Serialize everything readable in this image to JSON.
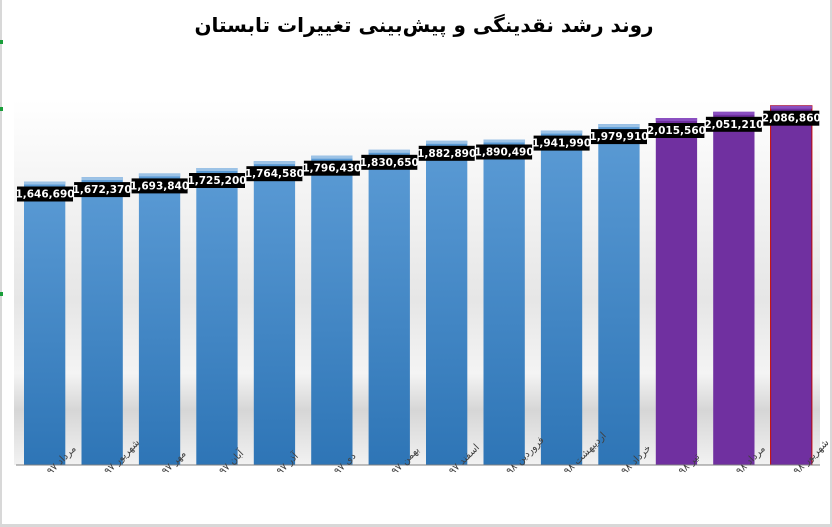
{
  "chart_data": {
    "type": "bar",
    "title": "روند رشد نقدینگی و پیش‌بینی تغییرات تابستان",
    "xlabel": "",
    "ylabel": "",
    "ylim": [
      0,
      2120000
    ],
    "grid": false,
    "legend": "none",
    "categories": [
      "مرداد ۹۷",
      "شهریور ۹۷",
      "مهر ۹۷",
      "آبان ۹۷",
      "آذر ۹۷",
      "دی ۹۷",
      "بهمن ۹۷",
      "اسفند ۹۷",
      "فروردین ۹۸",
      "اردیبهشت ۹۸",
      "خرداد ۹۸",
      "تیر ۹۸",
      "مرداد ۹۸",
      "شهریور ۹۸"
    ],
    "values": [
      1646690,
      1672370,
      1693840,
      1725200,
      1764580,
      1796430,
      1830650,
      1882890,
      1890490,
      1941990,
      1979910,
      2015560,
      2051210,
      2086860
    ],
    "value_labels": [
      "1,646,690",
      "1,672,370",
      "1,693,840",
      "1,725,200",
      "1,764,580",
      "1,796,430",
      "1,830,650",
      "1,882,890",
      "1,890,490",
      "1,941,990",
      "1,979,910",
      "2,015,560",
      "2,051,210",
      "2,086,860"
    ],
    "series_kind": [
      "actual",
      "actual",
      "actual",
      "actual",
      "actual",
      "actual",
      "actual",
      "actual",
      "actual",
      "actual",
      "actual",
      "forecast",
      "forecast",
      "forecast"
    ],
    "colors": {
      "actual_top": "#5b9bd5",
      "actual_bottom": "#2e75b6",
      "forecast": "#7030a0",
      "forecast_edge": "#c00000",
      "label_bg": "#000000",
      "label_text": "#ffffff",
      "axis": "#808080"
    }
  }
}
